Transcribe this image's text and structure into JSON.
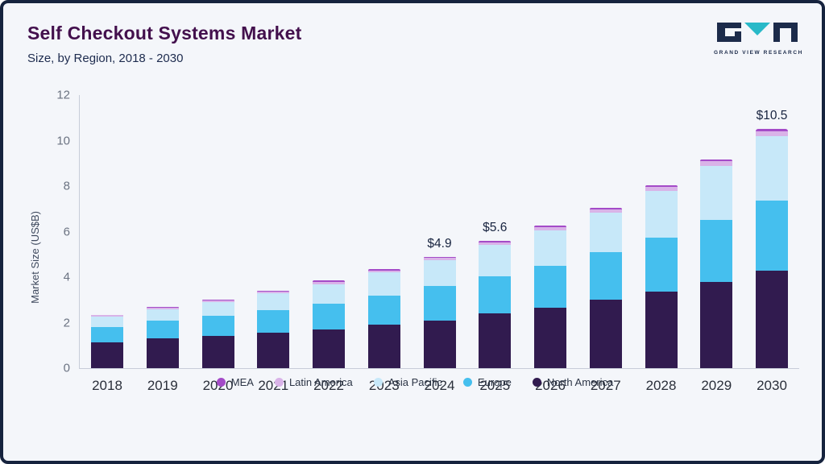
{
  "header": {
    "title": "Self Checkout Systems Market",
    "subtitle": "Size, by Region, 2018 - 2030",
    "logo_text": "GRAND VIEW RESEARCH"
  },
  "palette": {
    "frame": "#16233e",
    "bg": "#f4f6fa",
    "title": "#43104d",
    "subtitle": "#1d2b4e",
    "logo_teal": "#29b9c8"
  },
  "chart_data": {
    "type": "bar",
    "stacked": true,
    "title": "Self Checkout Systems Market Size, by Region, 2018 - 2030",
    "xlabel": "",
    "ylabel": "Market Size (US$B)",
    "ylim": [
      0,
      12
    ],
    "yticks": [
      0,
      2,
      4,
      6,
      8,
      10,
      12
    ],
    "grid": false,
    "legend_position": "bottom",
    "categories": [
      "2018",
      "2019",
      "2020",
      "2021",
      "2022",
      "2023",
      "2024",
      "2025",
      "2026",
      "2027",
      "2028",
      "2029",
      "2030"
    ],
    "series": [
      {
        "name": "North America",
        "color": "#311b4f",
        "values": [
          1.15,
          1.3,
          1.4,
          1.55,
          1.7,
          1.9,
          2.1,
          2.4,
          2.65,
          3.0,
          3.35,
          3.8,
          4.3
        ]
      },
      {
        "name": "Europe",
        "color": "#45bfee",
        "values": [
          0.65,
          0.8,
          0.9,
          1.0,
          1.15,
          1.3,
          1.5,
          1.65,
          1.85,
          2.1,
          2.4,
          2.7,
          3.05
        ]
      },
      {
        "name": "Asia Pacific",
        "color": "#c7e8f9",
        "values": [
          0.45,
          0.5,
          0.6,
          0.73,
          0.85,
          1.0,
          1.14,
          1.36,
          1.55,
          1.74,
          2.05,
          2.4,
          2.84
        ]
      },
      {
        "name": "Latin America",
        "color": "#d9b3e8",
        "values": [
          0.07,
          0.07,
          0.08,
          0.09,
          0.1,
          0.1,
          0.11,
          0.12,
          0.13,
          0.15,
          0.17,
          0.19,
          0.21
        ]
      },
      {
        "name": "MEA",
        "color": "#a44bc8",
        "values": [
          0.03,
          0.03,
          0.04,
          0.04,
          0.05,
          0.05,
          0.05,
          0.07,
          0.07,
          0.07,
          0.08,
          0.09,
          0.1
        ]
      }
    ],
    "value_labels": {
      "2024": "$4.9",
      "2025": "$5.6",
      "2030": "$10.5"
    },
    "legend_order": [
      "MEA",
      "Latin America",
      "Asia Pacific",
      "Europe",
      "North America"
    ]
  }
}
